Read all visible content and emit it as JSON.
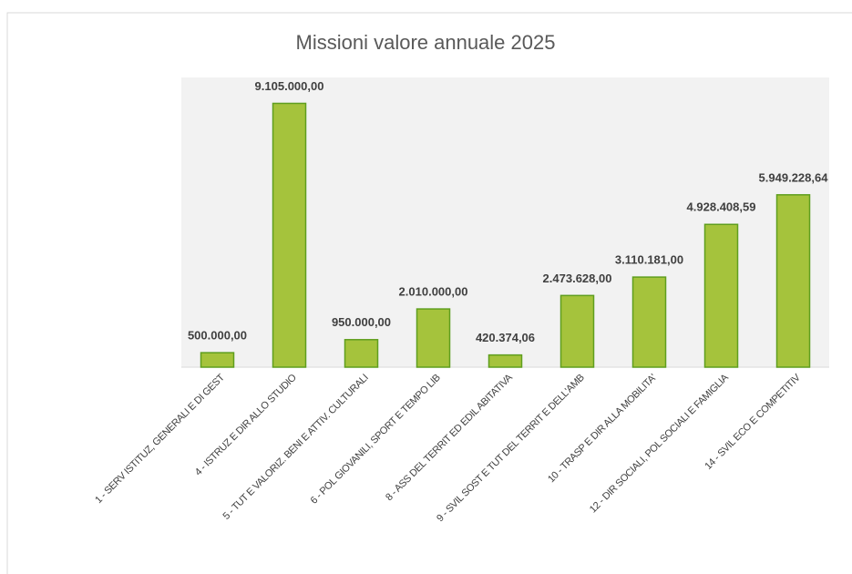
{
  "chart_data": {
    "type": "bar",
    "title": "Missioni valore annuale 2025",
    "categories": [
      "1 - SERV ISTITUZ, GENERALI E DI GEST",
      "4 - ISTRUZ E DIR ALLO STUDIO",
      "5 - TUT E VALORIZ. BENI E ATTIV. CULTURALI",
      "6 - POL GIOVANILI, SPORT E TEMPO LIB",
      "8 - ASS DEL TERRIT ED EDIL ABITATIVA",
      "9 - SVIL SOST E TUT DEL TERRIT E DELL'AMB",
      "10 - TRASP E DIR ALLA MOBILITA'",
      "12 - DIR SOCIALI, POL SOCIALI E FAMIGLIA",
      "14 - SVIL ECO E COMPETITIV"
    ],
    "values": [
      500000,
      9105000,
      950000,
      2010000,
      420374.06,
      2473628,
      3110181,
      4928408.59,
      5949228.64
    ],
    "value_labels": [
      "500.000,00",
      "9.105.000,00",
      "950.000,00",
      "2.010.000,00",
      "420.374,06",
      "2.473.628,00",
      "3.110.181,00",
      "4.928.408,59",
      "5.949.228,64"
    ],
    "color": "#a5c33c",
    "ylim": [
      0,
      10000000
    ]
  }
}
